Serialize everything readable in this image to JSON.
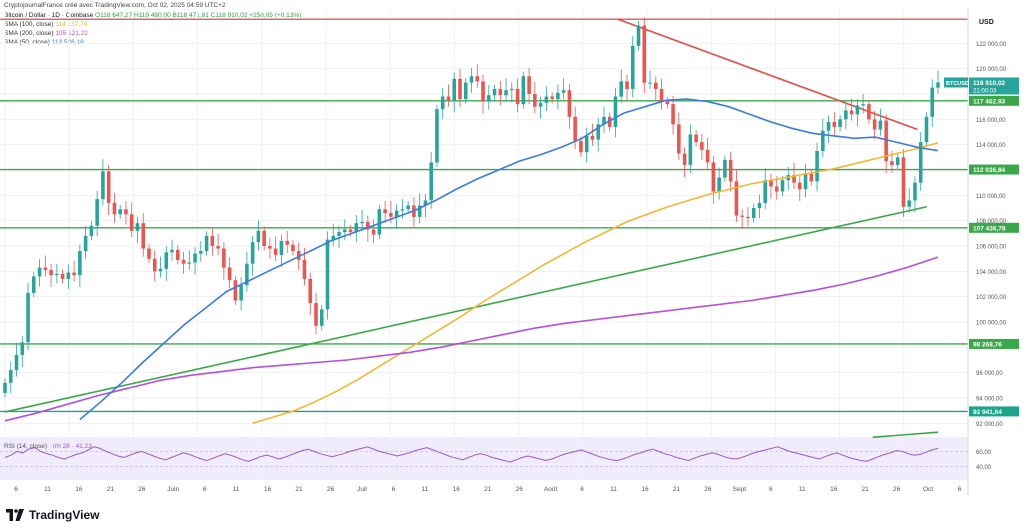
{
  "header": {
    "subtitle": "CryptojournalFrance créé avec TradingView.com, Oct 02, 2025 04:59 UTC+2",
    "symbol_line": "Bitcoin / Dollar · 1D · Coinbase",
    "ohlc_text": "O118 647,27 H119 480,00 B118 471,81 C118 910,02 +258,05 (+0,13%)"
  },
  "legend": [
    {
      "label": "SMA (100, close)",
      "value": "114 137,74",
      "color": "#f5b731"
    },
    {
      "label": "SMA (200, close)",
      "value": "105 121,22",
      "color": "#b44fe0"
    },
    {
      "label": "SMA (50, close)",
      "value": "113 526,18",
      "color": "#3a7be8"
    }
  ],
  "price_axis": {
    "currency": "USD",
    "ticks": [
      "122 000,00",
      "120 000,00",
      "116 000,00",
      "114 000,00",
      "110 000,00",
      "108 000,00",
      "106 000,00",
      "104 000,00",
      "102 000,00",
      "100 000,00",
      "96 000,00",
      "94 000,00",
      "92 000,00",
      "60,00",
      "40,00"
    ],
    "levels": [
      {
        "label": "117 462,93",
        "price": 117462.93
      },
      {
        "label": "112 036,84",
        "price": 112036.84
      },
      {
        "label": "107 436,78",
        "price": 107436.78
      },
      {
        "label": "98 268,76",
        "price": 98268.76
      },
      {
        "label": "92 941,64",
        "price": 92941.64
      }
    ],
    "current": {
      "symbol": "BTCUSD",
      "price_label": "118 910,02",
      "countdown": "21:00:03",
      "price": 118910.02
    },
    "top_resistance_price": 123900
  },
  "x_axis": {
    "labels": [
      "6",
      "11",
      "16",
      "21",
      "26",
      "Juin",
      "6",
      "11",
      "16",
      "21",
      "26",
      "Juil",
      "6",
      "11",
      "16",
      "21",
      "26",
      "Août",
      "6",
      "11",
      "16",
      "21",
      "26",
      "Sept",
      "6",
      "11",
      "16",
      "21",
      "26",
      "Oct",
      "6"
    ]
  },
  "rsi": {
    "label": "RSI (14, close)",
    "value_text": "rrh 28 · 41,23",
    "ticks": [
      "60,00",
      "40,00"
    ],
    "values": [
      52,
      55,
      60,
      58,
      63,
      65,
      60,
      57,
      55,
      52,
      50,
      53,
      56,
      58,
      62,
      66,
      64,
      60,
      57,
      54,
      52,
      55,
      58,
      60,
      57,
      54,
      51,
      49,
      52,
      55,
      58,
      56,
      53,
      50,
      48,
      51,
      54,
      57,
      55,
      52,
      49,
      47,
      50,
      53,
      55,
      53,
      50,
      52,
      55,
      58,
      61,
      63,
      60,
      57,
      55,
      53,
      55,
      57,
      60,
      62,
      64,
      66,
      63,
      60,
      58,
      56,
      54,
      56,
      58,
      61,
      63,
      65,
      62,
      59,
      56,
      53,
      51,
      49,
      52,
      55,
      57,
      55,
      52,
      50,
      48,
      46,
      49,
      52,
      54,
      52,
      50,
      48,
      50,
      53,
      56,
      58,
      60,
      62,
      59,
      56,
      53,
      51,
      49,
      48,
      50,
      53,
      56,
      58,
      61,
      63,
      60,
      57,
      55,
      52,
      50,
      48,
      51,
      54,
      56,
      58,
      56,
      53,
      51,
      50,
      52,
      55,
      58,
      60,
      62,
      64,
      66,
      63,
      60,
      58,
      56,
      54,
      52,
      50,
      53,
      56,
      58,
      55,
      52,
      50,
      48,
      47,
      50,
      53,
      56,
      58,
      61,
      60,
      57,
      55,
      56,
      59,
      62,
      64
    ]
  },
  "branding": {
    "name": "TradingView"
  },
  "chart_data": {
    "type": "candlestick",
    "title": "Bitcoin / Dollar · 1D · Coinbase",
    "ylabel": "USD",
    "ylim": [
      91000,
      124000
    ],
    "x_range": [
      "2025-05-06",
      "2025-10-06"
    ],
    "closes": [
      95200,
      96200,
      97400,
      98400,
      102300,
      103600,
      104300,
      104100,
      103700,
      103800,
      103400,
      103900,
      103700,
      105600,
      106800,
      107600,
      109700,
      111900,
      109400,
      108500,
      108900,
      108500,
      107200,
      107800,
      105800,
      105000,
      104000,
      104200,
      105500,
      105700,
      104900,
      104600,
      104700,
      105400,
      105600,
      106800,
      106000,
      105800,
      104300,
      103300,
      101700,
      102900,
      104600,
      106300,
      107200,
      106000,
      105800,
      105300,
      106400,
      106100,
      105600,
      104900,
      103400,
      101500,
      99700,
      101000,
      106500,
      106800,
      107100,
      107300,
      107100,
      107800,
      107900,
      107300,
      106900,
      108900,
      108600,
      108300,
      108800,
      108900,
      109200,
      108300,
      109200,
      109600,
      112600,
      116800,
      117800,
      117500,
      119200,
      117600,
      118900,
      119400,
      119000,
      117400,
      117900,
      118400,
      117900,
      118300,
      118400,
      117200,
      119400,
      118000,
      117000,
      117300,
      117800,
      117600,
      118100,
      118300,
      116200,
      114300,
      113400,
      114700,
      114400,
      115600,
      116200,
      115400,
      117800,
      119000,
      118400,
      121800,
      123400,
      118900,
      118900,
      118400,
      117400,
      117200,
      115600,
      113300,
      112400,
      114800,
      114200,
      113600,
      112600,
      110300,
      111400,
      112800,
      111100,
      108400,
      108300,
      108200,
      109000,
      109400,
      111200,
      110700,
      110300,
      111200,
      111600,
      111000,
      110500,
      111700,
      111100,
      113500,
      115100,
      115800,
      115400,
      116000,
      116700,
      116400,
      117100,
      117200,
      116000,
      115200,
      115900,
      112700,
      112400,
      113000,
      109100,
      109600,
      111000,
      114200,
      116200,
      118500,
      118910
    ],
    "series": [
      {
        "name": "SMA (100, close)",
        "color": "#f5b731",
        "start_index": 43,
        "values": [
          92000,
          92500,
          93000,
          93700,
          94500,
          95400,
          96400,
          97400,
          98400,
          99400,
          100400,
          101500,
          102500,
          103500,
          104500,
          105400,
          106300,
          107100,
          107900,
          108500,
          109100,
          109600,
          110100,
          110500,
          110900,
          111200,
          111500,
          111800,
          112100,
          112500,
          112900,
          113300,
          113700,
          114137.74
        ]
      },
      {
        "name": "SMA (200, close)",
        "color": "#b44fe0",
        "start_index": 0,
        "values": [
          92200,
          92800,
          93500,
          94200,
          94800,
          95400,
          95800,
          96100,
          96400,
          96600,
          96800,
          97000,
          97300,
          97600,
          98000,
          98500,
          99000,
          99500,
          99900,
          100200,
          100500,
          100800,
          101100,
          101400,
          101700,
          102100,
          102500,
          103000,
          103600,
          104300,
          105121.22
        ]
      },
      {
        "name": "SMA (50, close)",
        "color": "#3a7be8",
        "start_index": 13,
        "values": [
          92300,
          93700,
          95200,
          96800,
          98300,
          99800,
          101100,
          102400,
          103200,
          104000,
          104800,
          105600,
          106400,
          107000,
          107600,
          108200,
          108800,
          109600,
          110500,
          111300,
          112000,
          112700,
          113200,
          113800,
          114500,
          115600,
          116500,
          117000,
          117500,
          117600,
          117400,
          117000,
          116400,
          115800,
          115300,
          114900,
          114700,
          114500,
          114600,
          114200,
          113800,
          113526.18
        ]
      }
    ],
    "trendlines": [
      {
        "name": "descending-resistance",
        "color": "#e94b4b",
        "points": [
          [
            123900,
            0.657
          ],
          [
            115200,
            0.978
          ]
        ]
      },
      {
        "name": "ascending-support",
        "color": "#3aa84a",
        "points": [
          [
            92900,
            0.0
          ],
          [
            109100,
            0.988
          ]
        ]
      },
      {
        "name": "ascending-support-projection",
        "color": "#3aa84a",
        "points": [
          [
            90900,
            0.93
          ],
          [
            91300,
            1.0
          ]
        ]
      }
    ],
    "grid": true,
    "legend_position": "top-left"
  }
}
